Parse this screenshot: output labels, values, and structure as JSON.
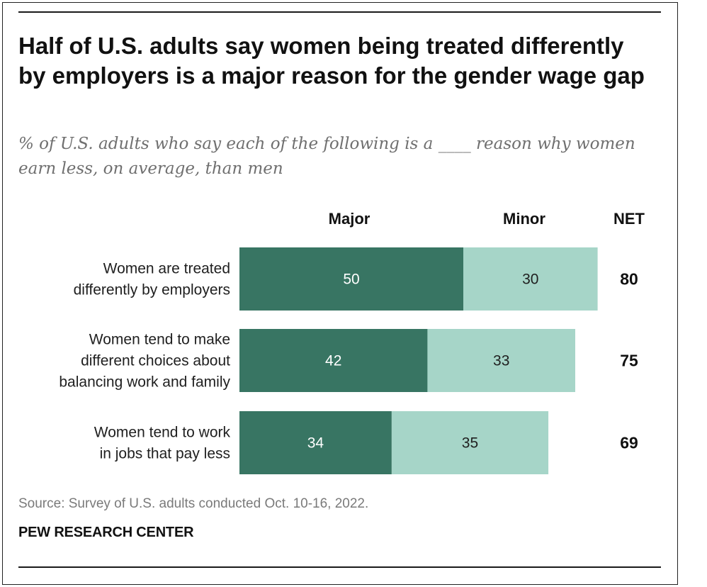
{
  "header": {
    "title": "Half of U.S. adults say women being treated differently by employers is a major reason for the gender wage gap",
    "subtitle": "% of U.S. adults who say each of the following is a ____ reason why women earn less, on average, than men"
  },
  "footer": {
    "source": "Source: Survey of U.S. adults conducted Oct. 10-16, 2022.",
    "brand": "PEW RESEARCH CENTER"
  },
  "colors": {
    "major": "#387563",
    "minor": "#a6d5c8",
    "major_text": "#ffffff",
    "minor_text": "#1f1f1f"
  },
  "chart_data": {
    "type": "bar",
    "orientation": "horizontal",
    "stacked": true,
    "title": "Half of U.S. adults say women being treated differently by employers is a major reason for the gender wage gap",
    "column_headers": [
      "Major",
      "Minor",
      "NET"
    ],
    "categories": [
      [
        "Women are treated",
        "differently by employers"
      ],
      [
        "Women tend to make",
        "different choices about",
        "balancing work and family"
      ],
      [
        "Women tend to work",
        "in jobs that pay less"
      ]
    ],
    "series": [
      {
        "name": "Major",
        "values": [
          50,
          42,
          34
        ]
      },
      {
        "name": "Minor",
        "values": [
          30,
          33,
          35
        ]
      }
    ],
    "net": [
      80,
      75,
      69
    ],
    "xlim": [
      0,
      80
    ],
    "grid": false,
    "legend": "column headers above bars"
  }
}
